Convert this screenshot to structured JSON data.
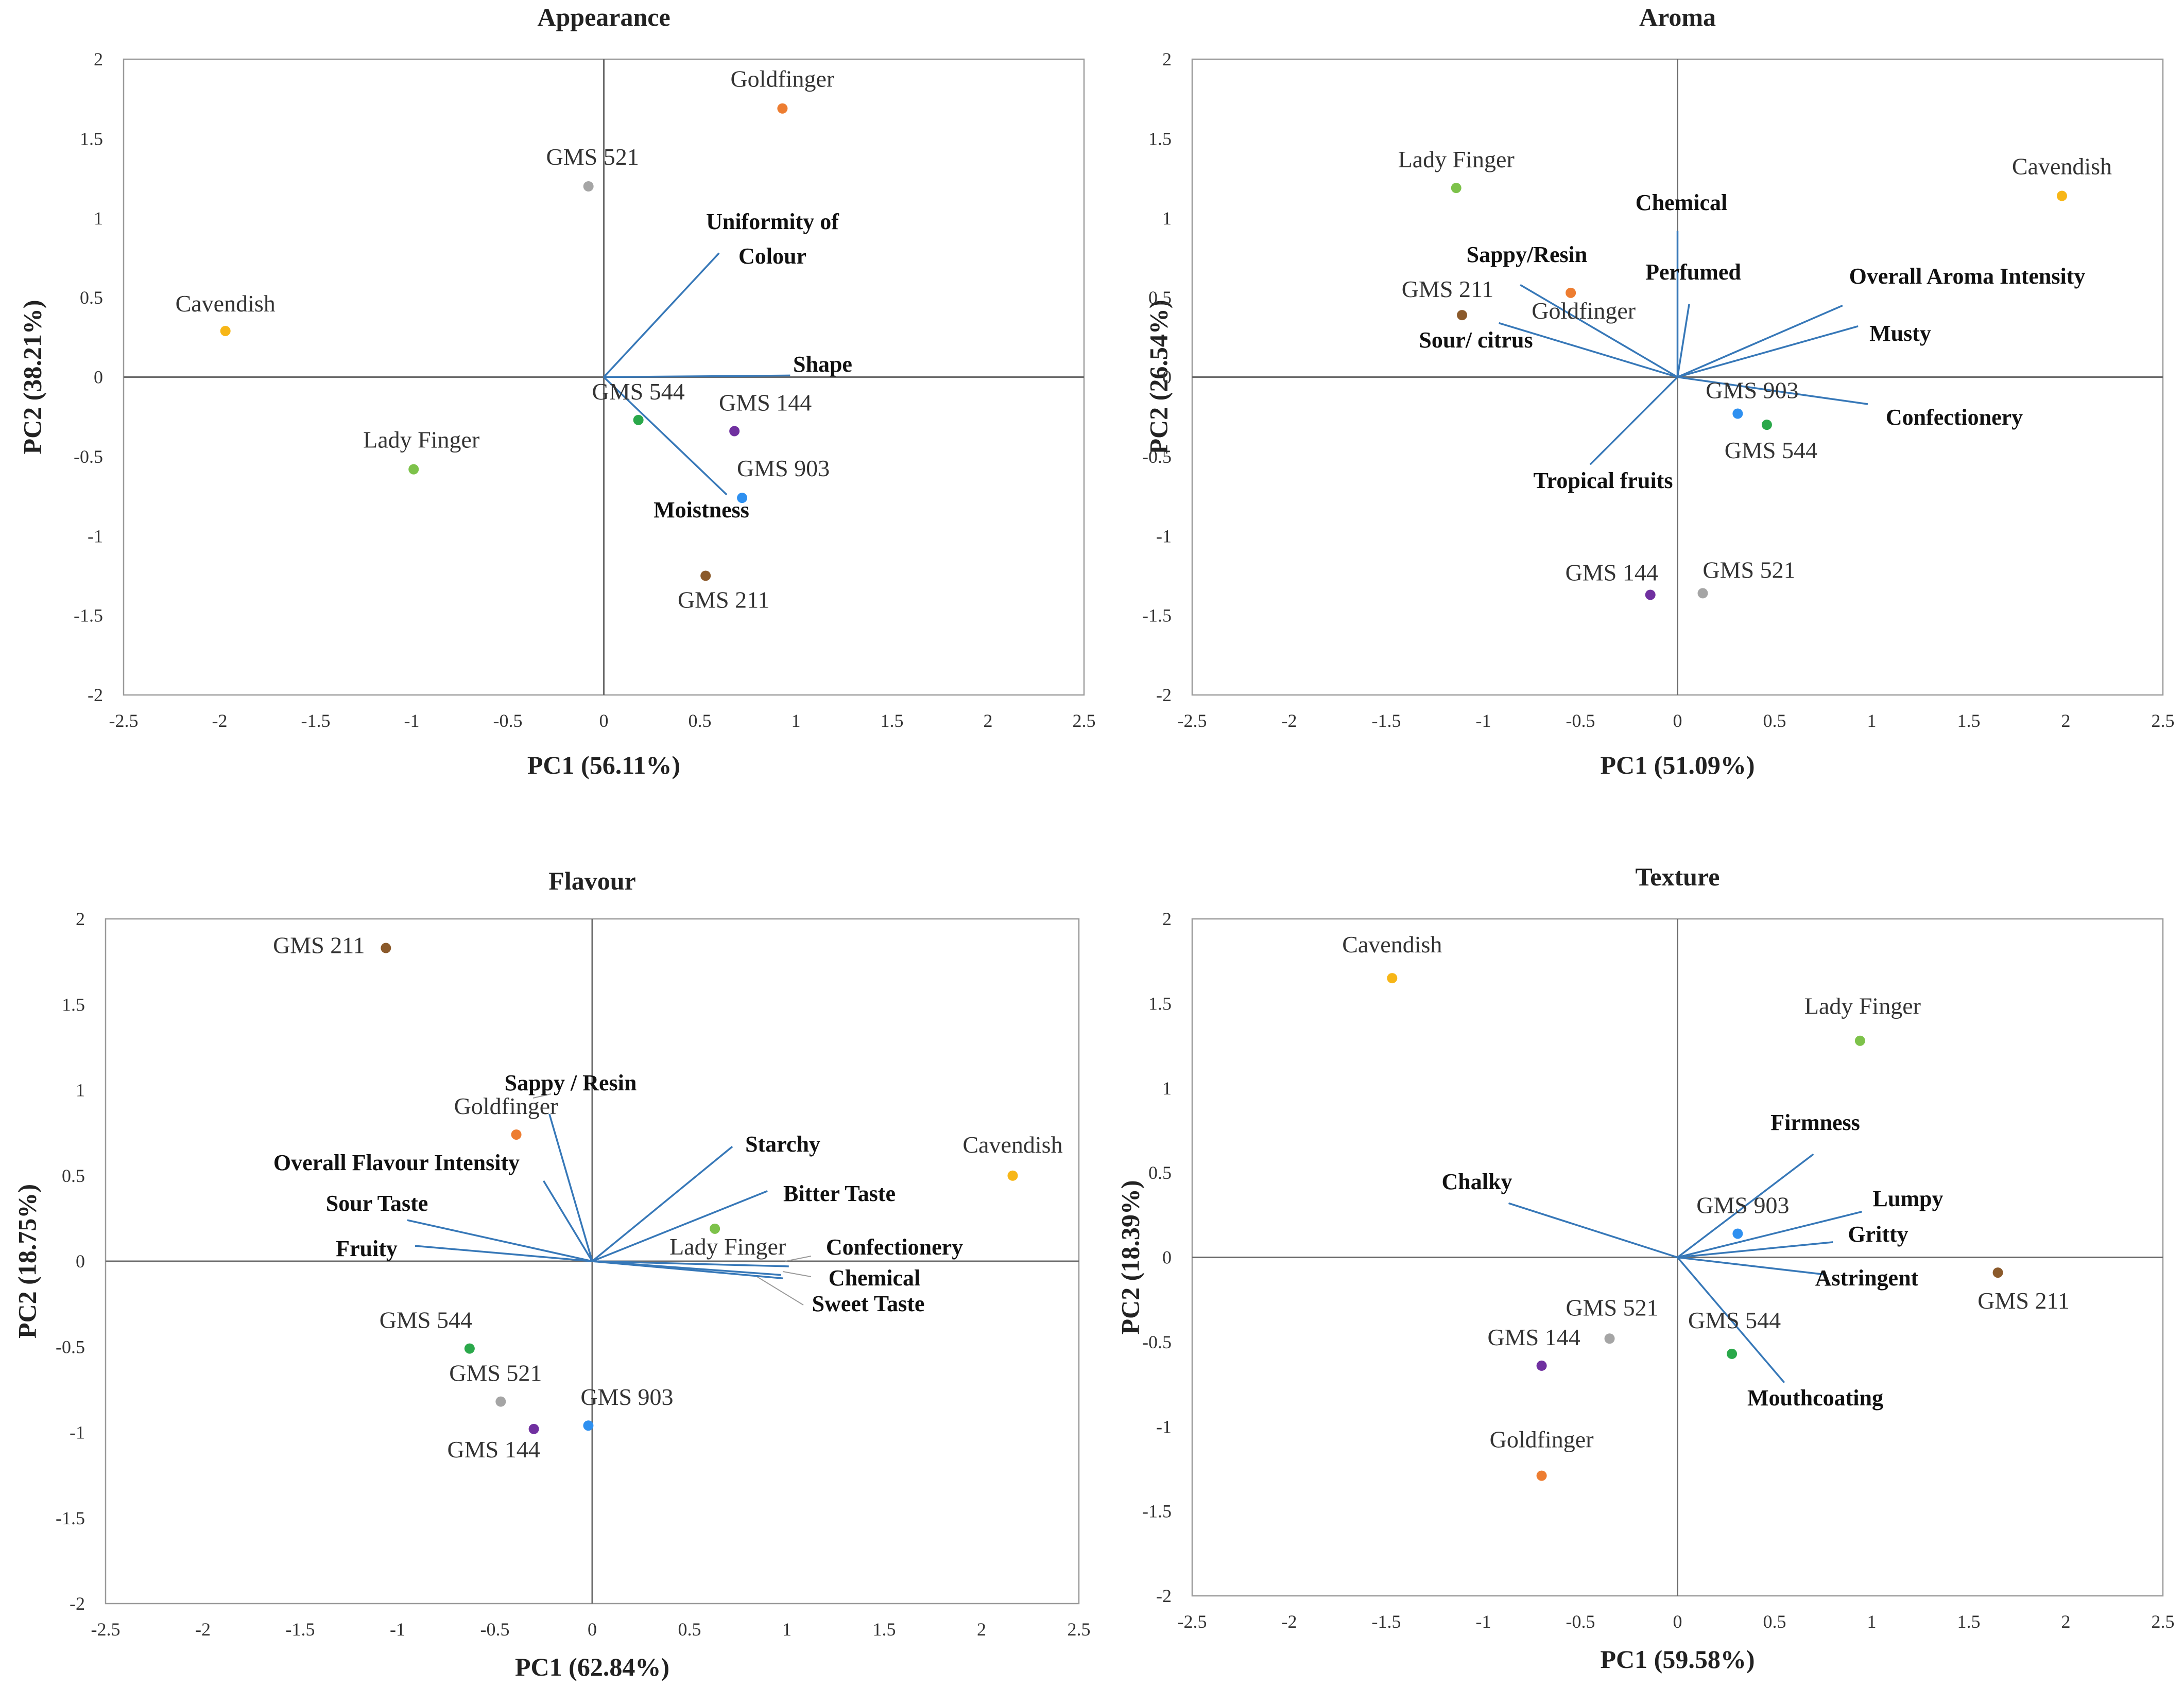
{
  "colors": {
    "vector": "#3778b8",
    "Cavendish": "#f7b617",
    "Lady Finger": "#7dc24a",
    "Goldfinger": "#ed7d31",
    "GMS 521": "#a5a5a5",
    "GMS 544": "#2aa84a",
    "GMS 144": "#7030a0",
    "GMS 903": "#2e90f0",
    "GMS 211": "#8b5a2b"
  },
  "chart_data": [
    {
      "type": "scatter",
      "title": "Appearance",
      "xlabel": "PC1 (56.11%)",
      "ylabel": "PC2 (38.21%)",
      "xlim": [
        -2.5,
        2.5
      ],
      "ylim": [
        -2,
        2
      ],
      "xticks": [
        "-2.5",
        "-2",
        "-1.5",
        "-1",
        "-0.5",
        "0",
        "0.5",
        "1",
        "1.5",
        "2",
        "2.5"
      ],
      "yticks": [
        "2",
        "1.5",
        "1",
        "0.5",
        "0",
        "-0.5",
        "-1",
        "-1.5",
        "-2"
      ],
      "points": [
        {
          "name": "Cavendish",
          "x": -1.97,
          "y": 0.29
        },
        {
          "name": "Goldfinger",
          "x": 0.93,
          "y": 1.69
        },
        {
          "name": "GMS 521",
          "x": -0.08,
          "y": 1.2
        },
        {
          "name": "Lady Finger",
          "x": -0.99,
          "y": -0.58
        },
        {
          "name": "GMS 544",
          "x": 0.18,
          "y": -0.27
        },
        {
          "name": "GMS 144",
          "x": 0.68,
          "y": -0.34
        },
        {
          "name": "GMS 903",
          "x": 0.72,
          "y": -0.76
        },
        {
          "name": "GMS 211",
          "x": 0.53,
          "y": -1.25
        }
      ],
      "vectors": [
        {
          "name": "Uniformity of Colour",
          "x": 0.6,
          "y": 0.78
        },
        {
          "name": "Shape",
          "x": 0.97,
          "y": 0.01
        },
        {
          "name": "Moistness",
          "x": 0.64,
          "y": -0.74
        }
      ]
    },
    {
      "type": "scatter",
      "title": "Aroma",
      "xlabel": "PC1 (51.09%)",
      "ylabel": "PC2 (26.54%)",
      "xlim": [
        -2.5,
        2.5
      ],
      "ylim": [
        -2,
        2
      ],
      "xticks": [
        "-2.5",
        "-2",
        "-1.5",
        "-1",
        "-0.5",
        "0",
        "0.5",
        "1",
        "1.5",
        "2",
        "2.5"
      ],
      "yticks": [
        "2",
        "1.5",
        "1",
        "0.5",
        "0",
        "-0.5",
        "-1",
        "-1.5",
        "-2"
      ],
      "points": [
        {
          "name": "Lady Finger",
          "x": -1.14,
          "y": 1.19
        },
        {
          "name": "Cavendish",
          "x": 1.98,
          "y": 1.14
        },
        {
          "name": "Goldfinger",
          "x": -0.55,
          "y": 0.53
        },
        {
          "name": "GMS 211",
          "x": -1.11,
          "y": 0.39
        },
        {
          "name": "GMS 903",
          "x": 0.31,
          "y": -0.23
        },
        {
          "name": "GMS 544",
          "x": 0.46,
          "y": -0.3
        },
        {
          "name": "GMS 144",
          "x": -0.14,
          "y": -1.37
        },
        {
          "name": "GMS 521",
          "x": 0.13,
          "y": -1.36
        }
      ],
      "vectors": [
        {
          "name": "Chemical",
          "x": 0.0,
          "y": 0.92
        },
        {
          "name": "Perfumed",
          "x": 0.06,
          "y": 0.46
        },
        {
          "name": "Sappy/Resin",
          "x": -0.81,
          "y": 0.58
        },
        {
          "name": "Sour/ citrus",
          "x": -0.92,
          "y": 0.34
        },
        {
          "name": "Overall Aroma Intensity",
          "x": 0.85,
          "y": 0.45
        },
        {
          "name": "Musty",
          "x": 0.93,
          "y": 0.32
        },
        {
          "name": "Confectionery",
          "x": 0.98,
          "y": -0.17
        },
        {
          "name": "Tropical fruits",
          "x": -0.45,
          "y": -0.55
        }
      ]
    },
    {
      "type": "scatter",
      "title": "Flavour",
      "xlabel": "PC1 (62.84%)",
      "ylabel": "PC2 (18.75%)",
      "xlim": [
        -2.5,
        2.5
      ],
      "ylim": [
        -2,
        2
      ],
      "xticks": [
        "-2.5",
        "-2",
        "-1.5",
        "-1",
        "-0.5",
        "0",
        "0.5",
        "1",
        "1.5",
        "2",
        "2.5"
      ],
      "yticks": [
        "2",
        "1.5",
        "1",
        "0.5",
        "0",
        "-0.5",
        "-1",
        "-1.5",
        "-2"
      ],
      "points": [
        {
          "name": "GMS 211",
          "x": -1.06,
          "y": 1.83
        },
        {
          "name": "Goldfinger",
          "x": -0.39,
          "y": 0.74
        },
        {
          "name": "Cavendish",
          "x": 2.16,
          "y": 0.5
        },
        {
          "name": "Lady Finger",
          "x": 0.63,
          "y": 0.19
        },
        {
          "name": "GMS 544",
          "x": -0.63,
          "y": -0.51
        },
        {
          "name": "GMS 521",
          "x": -0.47,
          "y": -0.82
        },
        {
          "name": "GMS 144",
          "x": -0.3,
          "y": -0.98
        },
        {
          "name": "GMS 903",
          "x": -0.02,
          "y": -0.96
        }
      ],
      "vectors": [
        {
          "name": "Sappy / Resin",
          "x": -0.22,
          "y": 0.86
        },
        {
          "name": "Overall Flavour Intensity",
          "x": -0.25,
          "y": 0.47
        },
        {
          "name": "Sour Taste",
          "x": -0.95,
          "y": 0.24
        },
        {
          "name": "Fruity",
          "x": -0.91,
          "y": 0.09
        },
        {
          "name": "Starchy",
          "x": 0.72,
          "y": 0.67
        },
        {
          "name": "Bitter Taste",
          "x": 0.9,
          "y": 0.41
        },
        {
          "name": "Confectionery",
          "x": 1.01,
          "y": -0.03
        },
        {
          "name": "Chemical",
          "x": 0.97,
          "y": -0.08
        },
        {
          "name": "Sweet Taste",
          "x": 0.98,
          "y": -0.1
        }
      ]
    },
    {
      "type": "scatter",
      "title": "Texture",
      "xlabel": "PC1 (59.58%)",
      "ylabel": "PC2 (18.39%)",
      "xlim": [
        -2.5,
        2.5
      ],
      "ylim": [
        -2,
        2
      ],
      "xticks": [
        "-2.5",
        "-2",
        "-1.5",
        "-1",
        "-0.5",
        "0",
        "0.5",
        "1",
        "1.5",
        "2",
        "2.5"
      ],
      "yticks": [
        "2",
        "1.5",
        "1",
        "0.5",
        "0",
        "-0.5",
        "-1",
        "-1.5",
        "-2"
      ],
      "points": [
        {
          "name": "Cavendish",
          "x": -1.47,
          "y": 1.65
        },
        {
          "name": "Lady Finger",
          "x": 0.94,
          "y": 1.28
        },
        {
          "name": "GMS 903",
          "x": 0.31,
          "y": 0.14
        },
        {
          "name": "GMS 211",
          "x": 1.65,
          "y": -0.09
        },
        {
          "name": "GMS 521",
          "x": -0.35,
          "y": -0.48
        },
        {
          "name": "GMS 544",
          "x": 0.28,
          "y": -0.57
        },
        {
          "name": "GMS 144",
          "x": -0.7,
          "y": -0.64
        },
        {
          "name": "Goldfinger",
          "x": -0.7,
          "y": -1.29
        }
      ],
      "vectors": [
        {
          "name": "Firmness",
          "x": 0.7,
          "y": 0.61
        },
        {
          "name": "Chalky",
          "x": -0.87,
          "y": 0.32
        },
        {
          "name": "Lumpy",
          "x": 0.95,
          "y": 0.27
        },
        {
          "name": "Gritty",
          "x": 0.8,
          "y": 0.09
        },
        {
          "name": "Astringent",
          "x": 0.75,
          "y": -0.1
        },
        {
          "name": "Mouthcoating",
          "x": 0.55,
          "y": -0.74
        }
      ]
    }
  ]
}
